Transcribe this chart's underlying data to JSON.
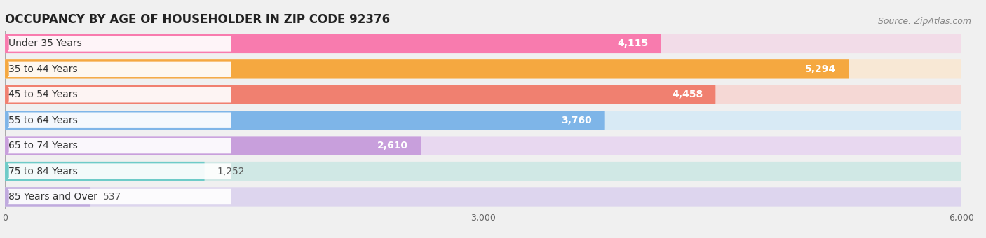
{
  "title": "OCCUPANCY BY AGE OF HOUSEHOLDER IN ZIP CODE 92376",
  "source": "Source: ZipAtlas.com",
  "categories": [
    "Under 35 Years",
    "35 to 44 Years",
    "45 to 54 Years",
    "55 to 64 Years",
    "65 to 74 Years",
    "75 to 84 Years",
    "85 Years and Over"
  ],
  "values": [
    4115,
    5294,
    4458,
    3760,
    2610,
    1252,
    537
  ],
  "bar_colors": [
    "#F87BAE",
    "#F5A840",
    "#F08070",
    "#7EB5E8",
    "#C89FDC",
    "#6ECBC8",
    "#C0AADE"
  ],
  "bar_bg_colors": [
    "#F2DCE8",
    "#F8E8D5",
    "#F5D8D5",
    "#D8EAF5",
    "#E8D8F0",
    "#D0E8E5",
    "#DDD5EE"
  ],
  "value_label_colors": [
    "#ffffff",
    "#ffffff",
    "#ffffff",
    "#ffffff",
    "#555555",
    "#555555",
    "#555555"
  ],
  "xlim": [
    0,
    6000
  ],
  "xticks": [
    0,
    3000,
    6000
  ],
  "title_fontsize": 12,
  "label_fontsize": 10,
  "value_fontsize": 10,
  "source_fontsize": 9,
  "background_color": "#f0f0f0",
  "bar_bg_overall": "#e8e8e8"
}
